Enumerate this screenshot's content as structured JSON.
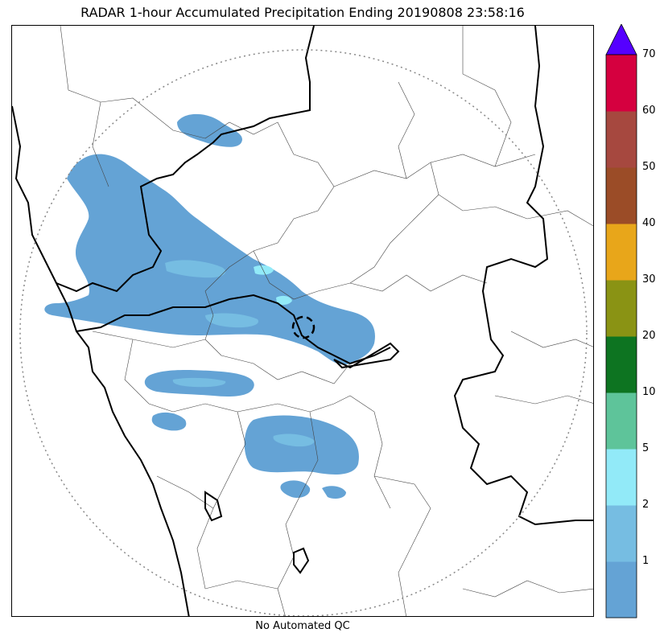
{
  "title": "RADAR 1-hour Accumulated Precipitation Ending 20190808 23:58:16",
  "footer_text": "No Automated QC",
  "colors": {
    "boundary_state": "#000000",
    "boundary_district": "#444444",
    "range_ring": "#888888",
    "rain_light": "#64a3d5",
    "rain_medium": "#76bde2",
    "rain_heavy": "#92eaf8"
  },
  "colorbar": {
    "levels": [
      "1",
      "2",
      "5",
      "10",
      "20",
      "30",
      "40",
      "50",
      "60",
      "70"
    ],
    "colors": [
      "#64a3d5",
      "#76bde2",
      "#92eaf8",
      "#5ec49a",
      "#0d7421",
      "#8a9314",
      "#e8a61a",
      "#9b4c27",
      "#a6483f",
      "#d5003f"
    ],
    "extend_color": "#5500ff"
  }
}
